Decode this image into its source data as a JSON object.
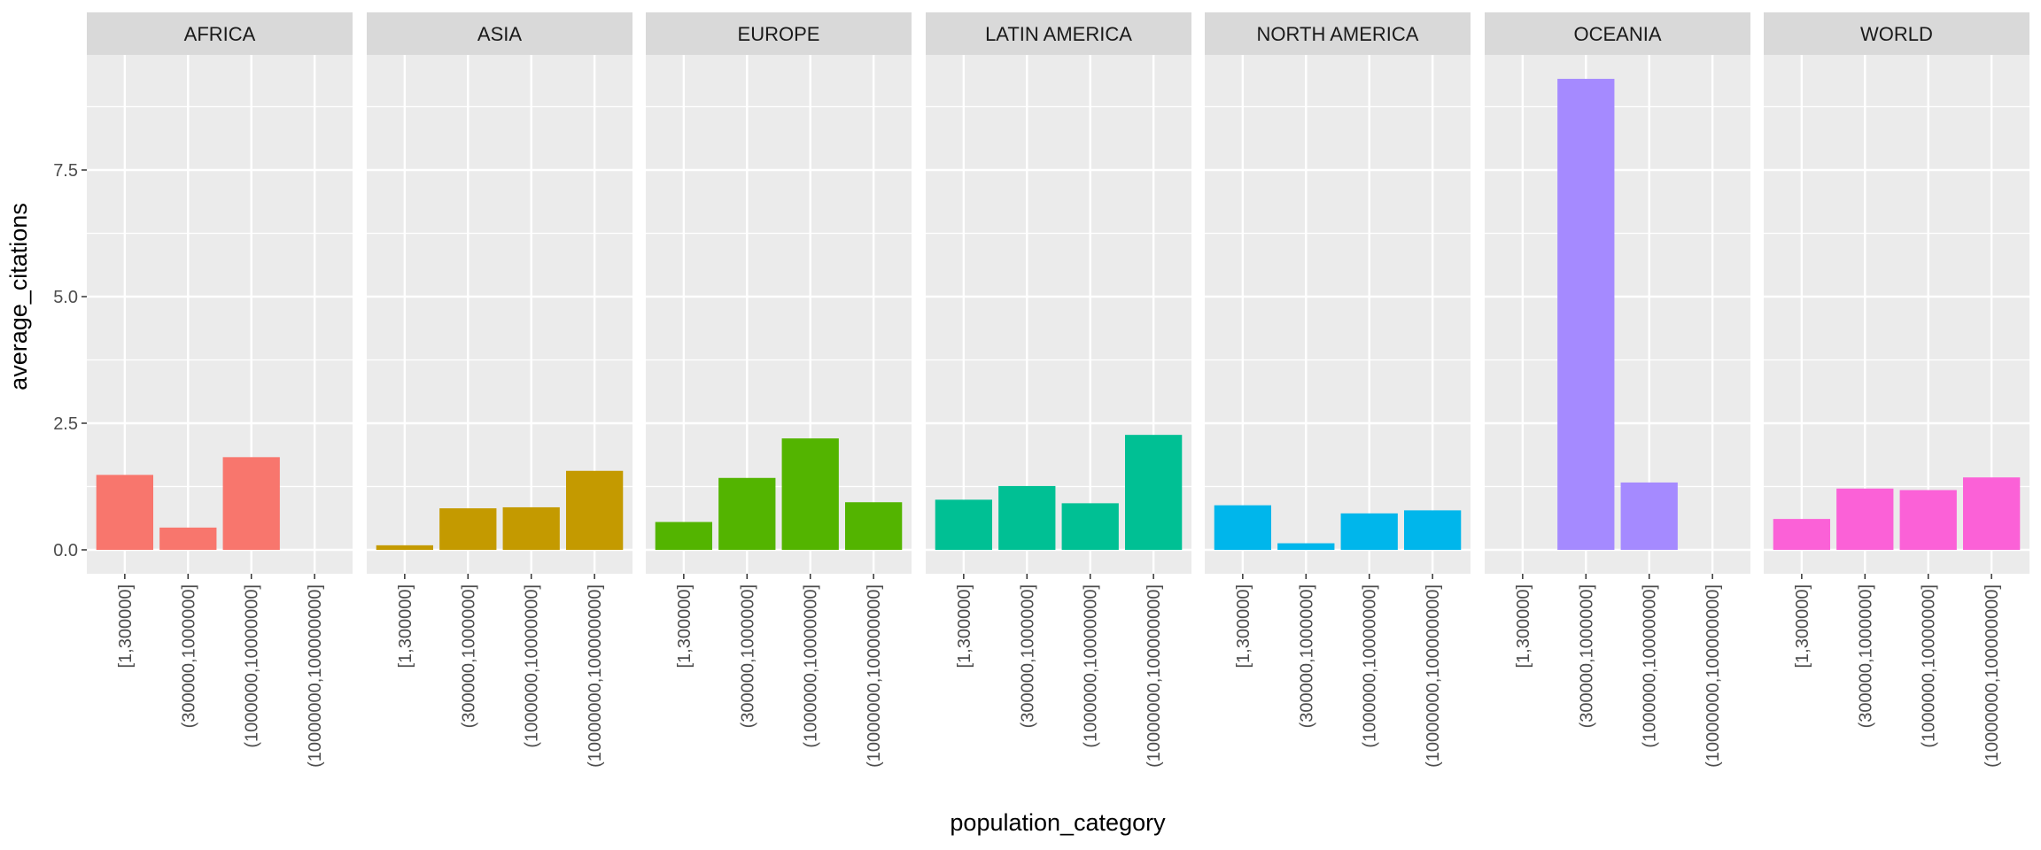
{
  "chart_data": {
    "type": "bar",
    "title": "",
    "xlabel": "population_category",
    "ylabel": "average_citations",
    "ylim": [
      -0.45,
      9.95
    ],
    "y_ticks": [
      0.0,
      2.5,
      5.0,
      7.5
    ],
    "y_tick_labels": [
      "0.0",
      "2.5",
      "5.0",
      "7.5"
    ],
    "grid": true,
    "legend": "none",
    "categories": [
      "[1,300000]",
      "(300000,1000000]",
      "(1000000,10000000]",
      "(10000000,100000000]"
    ],
    "facets": [
      {
        "name": "AFRICA",
        "color": "#F8766D",
        "values": [
          1.48,
          0.44,
          1.83,
          null
        ]
      },
      {
        "name": "ASIA",
        "color": "#C49A00",
        "values": [
          0.09,
          0.82,
          0.84,
          1.56
        ]
      },
      {
        "name": "EUROPE",
        "color": "#53B400",
        "values": [
          0.55,
          1.42,
          2.2,
          0.94
        ]
      },
      {
        "name": "LATIN AMERICA",
        "color": "#00C094",
        "values": [
          0.99,
          1.26,
          0.92,
          2.27
        ]
      },
      {
        "name": "NORTH AMERICA",
        "color": "#00B6EB",
        "values": [
          0.88,
          0.13,
          0.72,
          0.78
        ]
      },
      {
        "name": "OCEANIA",
        "color": "#A58AFF",
        "values": [
          null,
          9.3,
          1.33,
          null
        ]
      },
      {
        "name": "WORLD",
        "color": "#FB61D7",
        "values": [
          0.61,
          1.21,
          1.18,
          1.43
        ]
      }
    ]
  },
  "colors": {
    "panel_bg": "#EBEBEB",
    "strip_bg": "#D9D9D9",
    "grid": "#FFFFFF"
  }
}
